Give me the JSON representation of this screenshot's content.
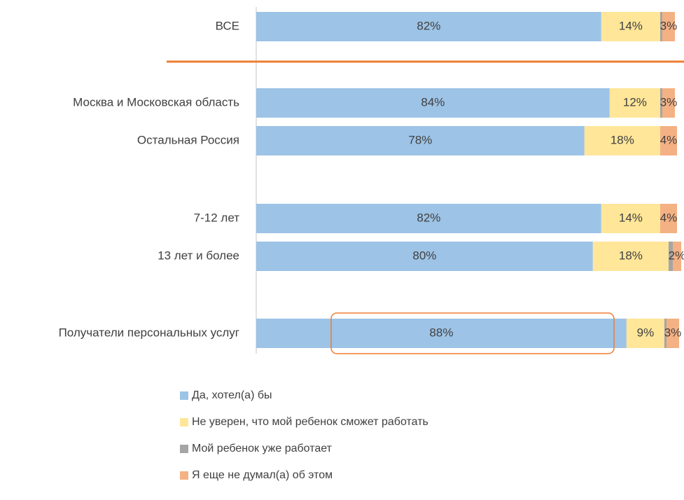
{
  "chart_data": {
    "type": "bar",
    "orientation": "horizontal",
    "stacked": true,
    "categories": [
      "ВСЕ",
      "Москва и Московская область",
      "Остальная Россия",
      "7-12 лет",
      "13 лет и более",
      "Получатели персональных услуг"
    ],
    "xlim": [
      0,
      100
    ],
    "series": [
      {
        "name": "Да, хотел(а) бы",
        "color": "#9dc3e6",
        "values": [
          82,
          84,
          78,
          82,
          80,
          88
        ],
        "value_labels": [
          "82%",
          "84%",
          "78%",
          "82%",
          "80%",
          "88%"
        ]
      },
      {
        "name": "Не уверен, что мой ребенок сможет работать",
        "color": "#ffe699",
        "values": [
          14,
          12,
          18,
          14,
          18,
          9
        ],
        "value_labels": [
          "14%",
          "12%",
          "18%",
          "14%",
          "18%",
          "9%"
        ]
      },
      {
        "name": "Мой ребенок уже работает",
        "color": "#a5a5a5",
        "values": [
          0.5,
          0.5,
          0,
          0,
          1,
          0.5
        ]
      },
      {
        "name": "Я еще не думал(а) об этом",
        "color": "#f4b183",
        "values": [
          3,
          3,
          4,
          4,
          2,
          3
        ],
        "value_labels": [
          "3%",
          "3%",
          "4%",
          "4%",
          "2%",
          "3%"
        ]
      }
    ],
    "legend": "bottom"
  }
}
